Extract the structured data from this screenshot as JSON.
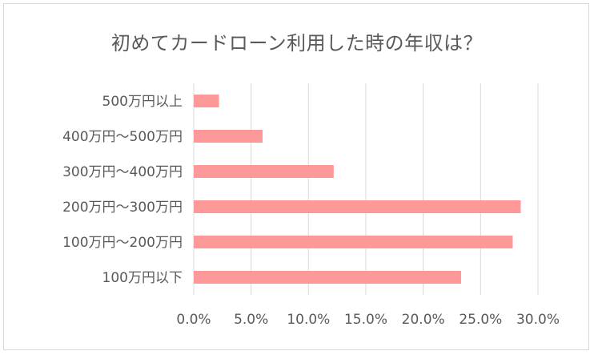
{
  "chart_data": {
    "type": "bar",
    "orientation": "horizontal",
    "title": "初めてカードローン利用した時の年収は？",
    "categories": [
      "500万円以上",
      "400万円～500万円",
      "300万円～400万円",
      "200万円～300万円",
      "100万円～200万円",
      "100万円以下"
    ],
    "values": [
      2.2,
      6.0,
      12.2,
      28.5,
      27.8,
      23.3
    ],
    "x_ticks": [
      "0.0%",
      "5.0%",
      "10.0%",
      "15.0%",
      "20.0%",
      "25.0%",
      "30.0%"
    ],
    "xlim": [
      0,
      30
    ],
    "grid": true,
    "legend": "none",
    "bar_color": "#ff9999",
    "grid_color": "#d9d9d9",
    "text_color": "#595959"
  }
}
